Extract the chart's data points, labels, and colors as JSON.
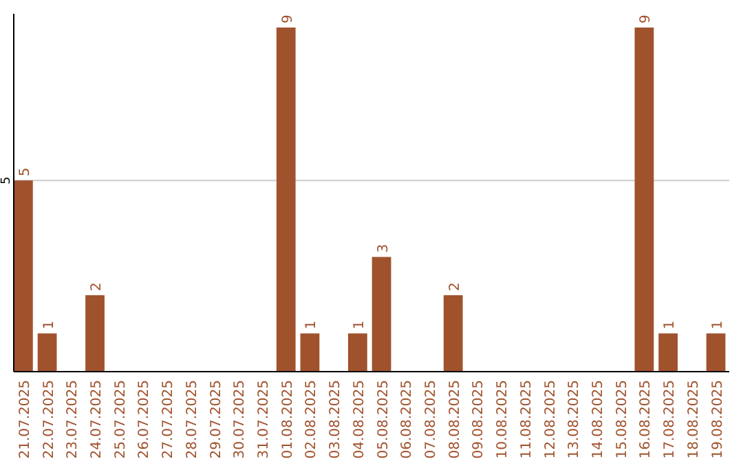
{
  "chart_data": {
    "type": "bar",
    "categories": [
      "21.07.2025",
      "22.07.2025",
      "23.07.2025",
      "24.07.2025",
      "25.07.2025",
      "26.07.2025",
      "27.07.2025",
      "28.07.2025",
      "29.07.2025",
      "30.07.2025",
      "31.07.2025",
      "01.08.2025",
      "02.08.2025",
      "03.08.2025",
      "04.08.2025",
      "05.08.2025",
      "06.08.2025",
      "07.08.2025",
      "08.08.2025",
      "09.08.2025",
      "10.08.2025",
      "11.08.2025",
      "12.08.2025",
      "13.08.2025",
      "14.08.2025",
      "15.08.2025",
      "16.08.2025",
      "17.08.2025",
      "18.08.2025",
      "19.08.2025"
    ],
    "values": [
      5,
      1,
      0,
      2,
      0,
      0,
      0,
      0,
      0,
      0,
      0,
      9,
      1,
      0,
      1,
      3,
      0,
      0,
      2,
      0,
      0,
      0,
      0,
      0,
      0,
      0,
      9,
      1,
      0,
      1
    ],
    "value_labels": [
      "5",
      "1",
      null,
      "2",
      null,
      null,
      null,
      null,
      null,
      null,
      null,
      "9",
      "1",
      null,
      "1",
      "3",
      null,
      null,
      "2",
      null,
      null,
      null,
      null,
      null,
      null,
      null,
      "9",
      "1",
      null,
      "1"
    ],
    "color": "#a0522d",
    "ylim": [
      0,
      9.36
    ],
    "yticks": [
      5
    ],
    "grid": "y"
  }
}
